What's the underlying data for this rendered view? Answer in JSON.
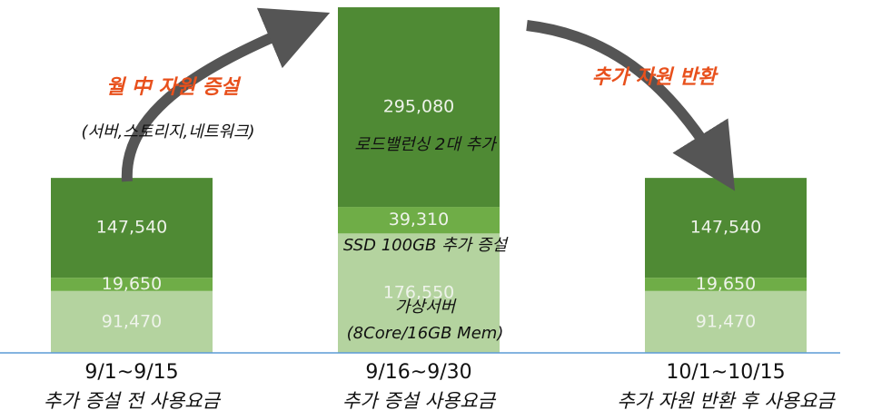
{
  "chart_data": {
    "type": "stacked_bar",
    "categories": [
      "9/1~9/15",
      "9/16~9/30",
      "10/1~10/15"
    ],
    "sublabels": [
      "추가 증설 전 사용요금",
      "추가 증설 사용요금",
      "추가 자원 반환 후 사용요금"
    ],
    "series": [
      {
        "color": "#b4d39f",
        "values": [
          91470,
          176550,
          91470
        ],
        "value_labels": [
          "91,470",
          "176,550",
          "91,470"
        ]
      },
      {
        "color": "#6fad47",
        "values": [
          19650,
          39310,
          19650
        ],
        "value_labels": [
          "19,650",
          "39,310",
          "19,650"
        ]
      },
      {
        "color": "#4f8a34",
        "values": [
          147540,
          295080,
          147540
        ],
        "value_labels": [
          "147,540",
          "295,080",
          "147,540"
        ]
      }
    ],
    "ylim": [
      0,
      515000
    ],
    "annotations": [
      "월 中 자원 증설",
      "(서버,스토리지,네트워크)",
      "추가 자원 반환",
      "로드밸런싱 2대 추가",
      "SSD 100GB 추가 증설",
      "가상서버",
      "(8Core/16GB Mem)"
    ]
  }
}
